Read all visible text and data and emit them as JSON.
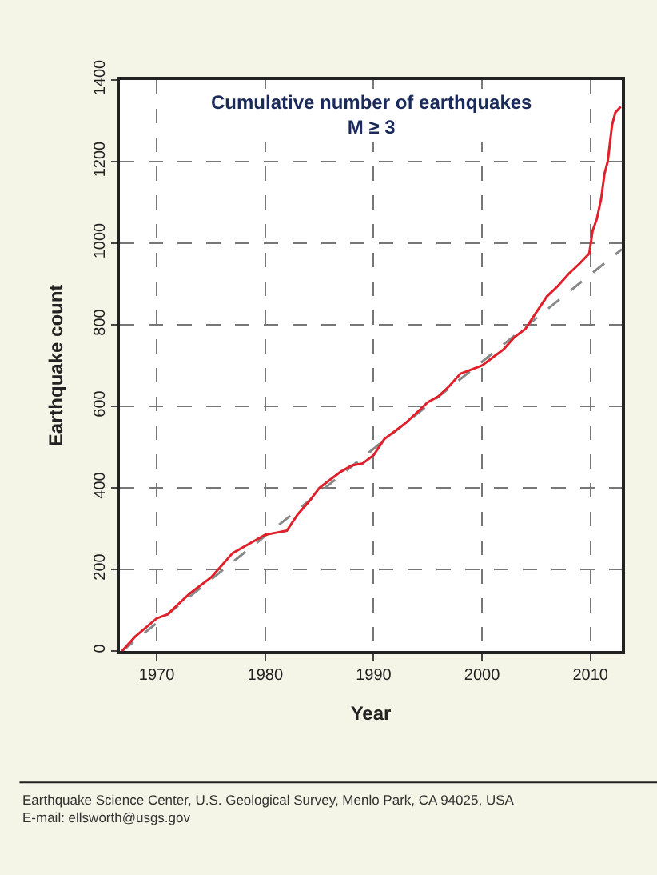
{
  "chart_data": {
    "type": "line",
    "title": "Cumulative number of earthquakes\nM ≥ 3",
    "xlabel": "Year",
    "ylabel": "Earthquake count",
    "xlim": [
      1966.6,
      2012.9
    ],
    "xticks": [
      1970,
      1980,
      1990,
      2000,
      2010
    ],
    "ylim": [
      0,
      1400
    ],
    "yticks": [
      0,
      200,
      400,
      600,
      800,
      1000,
      1200,
      1400
    ],
    "grid": true,
    "series": [
      {
        "color": "#888888",
        "line_style": "dashed",
        "x": [
          1966.8,
          2012.9
        ],
        "values": [
          0,
          985
        ]
      },
      {
        "color": "#e0202a",
        "line_style": "solid",
        "x": [
          1966.8,
          1968,
          1970,
          1971,
          1973,
          1975,
          1976,
          1977,
          1978,
          1980,
          1981,
          1982,
          1983,
          1984,
          1985,
          1986,
          1987,
          1988,
          1989,
          1990,
          1991,
          1992,
          1993,
          1995,
          1996,
          1997,
          1998,
          1999,
          2000,
          2001,
          2002,
          2003,
          2004,
          2005,
          2006,
          2007,
          2008,
          2009,
          2009.9,
          2010.2,
          2010.6,
          2011.0,
          2011.3,
          2011.6,
          2012.0,
          2012.3,
          2012.8
        ],
        "values": [
          0,
          35,
          80,
          90,
          140,
          180,
          210,
          240,
          255,
          285,
          290,
          295,
          335,
          365,
          400,
          420,
          440,
          455,
          460,
          480,
          520,
          540,
          560,
          610,
          625,
          650,
          680,
          690,
          700,
          720,
          740,
          770,
          790,
          830,
          870,
          895,
          925,
          950,
          975,
          1030,
          1060,
          1110,
          1170,
          1200,
          1290,
          1320,
          1335
        ]
      }
    ],
    "annotations": [
      "Earthquake Science Center, U.S. Geological Survey, Menlo Park, CA 94025, USA\nE-mail: ellsworth@usgs.gov"
    ]
  }
}
